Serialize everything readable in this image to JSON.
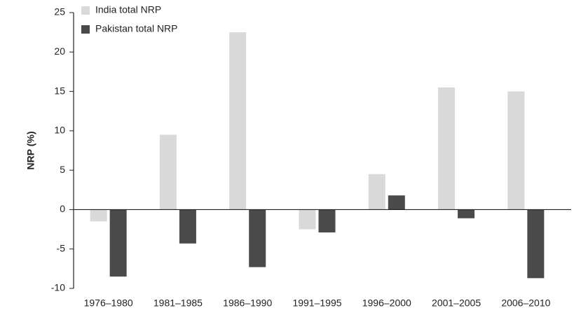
{
  "chart_data": {
    "type": "bar",
    "y_label": "NRP (%)",
    "categories": [
      "1976–1980",
      "1981–1985",
      "1986–1990",
      "1991–1995",
      "1996–2000",
      "2001–2005",
      "2006–2010"
    ],
    "series": [
      {
        "name": "India total NRP",
        "color": "#d9d9d9",
        "values": [
          -1.5,
          9.5,
          22.5,
          -2.5,
          4.5,
          15.5,
          15
        ]
      },
      {
        "name": "Pakistan total NRP",
        "color": "#4a4a4a",
        "values": [
          -8.5,
          -4.3,
          -7.3,
          -2.9,
          1.8,
          -1.1,
          -8.7
        ]
      }
    ],
    "ylim": [
      -10,
      25
    ],
    "yticks": [
      -10,
      -5,
      0,
      5,
      10,
      15,
      20,
      25
    ],
    "legend": "top-left"
  }
}
